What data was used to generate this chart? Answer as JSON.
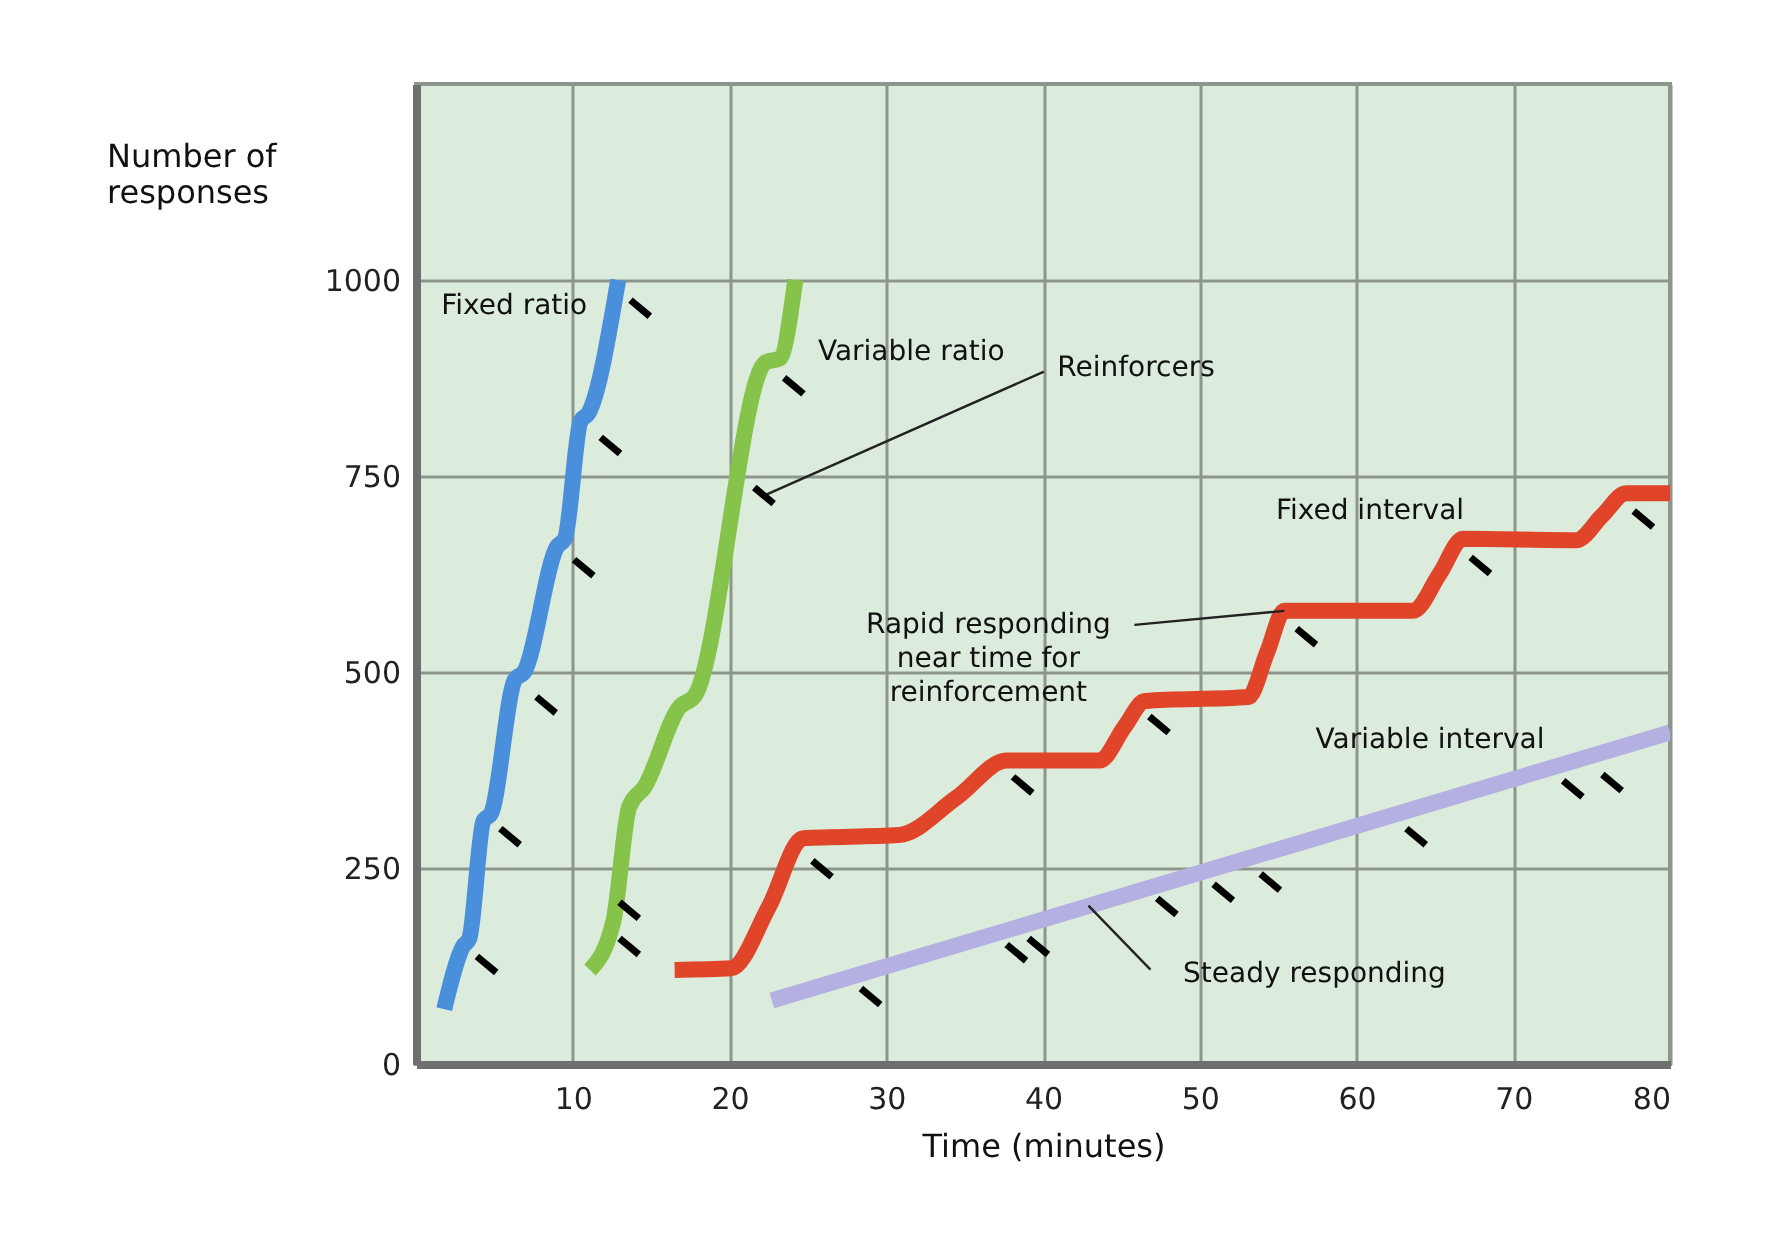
{
  "chart_data": {
    "type": "line",
    "xlabel": "Time (minutes)",
    "ylabel": "Number of\nresponses",
    "xlim": [
      0,
      80
    ],
    "ylim": [
      0,
      1250
    ],
    "xticks": [
      10,
      20,
      30,
      40,
      50,
      60,
      70,
      80
    ],
    "yticks": [
      0,
      250,
      500,
      750,
      1000
    ],
    "grid": true,
    "series": [
      {
        "name": "Fixed ratio",
        "color": "#4a8fdb",
        "x": [
          1.8,
          3.0,
          3.4,
          4.3,
          4.8,
          6.3,
          6.9,
          9.0,
          9.5,
          10.5,
          11.0,
          12.9
        ],
        "values": [
          70,
          150,
          160,
          310,
          320,
          490,
          500,
          660,
          670,
          820,
          830,
          1000
        ]
      },
      {
        "name": "Variable ratio",
        "color": "#86c34a",
        "x": [
          11.1,
          12.6,
          13.6,
          14.6,
          16.8,
          17.8,
          22.3,
          23.2,
          24.2
        ],
        "values": [
          120,
          183,
          328,
          354,
          455,
          470,
          895,
          900,
          1000
        ]
      },
      {
        "name": "Fixed interval",
        "color": "#e0452a",
        "x": [
          16.5,
          20.1,
          22.5,
          24.7,
          30.8,
          34.5,
          37.7,
          43.6,
          45.2,
          46.5,
          53.1,
          54.3,
          55.4,
          63.6,
          65.3,
          66.8,
          74.0,
          75.7,
          77.2,
          80
        ],
        "values": [
          120,
          122,
          200,
          288,
          292,
          340,
          387,
          387,
          430,
          463,
          468,
          525,
          578,
          578,
          625,
          670,
          668,
          700,
          728,
          728
        ]
      },
      {
        "name": "Variable interval",
        "color": "#b4b0e2",
        "x": [
          22.7,
          80
        ],
        "values": [
          81,
          423
        ]
      },
      {
        "type": "scatter",
        "color": "#000000",
        "x": [
          4.5,
          6.0,
          8.3,
          10.7,
          12.4,
          14.3,
          13.6,
          13.6,
          22.2,
          24.1,
          25.9,
          38.7,
          47.4,
          56.8,
          67.9,
          78.3,
          29.0,
          38.3,
          39.7,
          47.9,
          51.5,
          54.5,
          63.8,
          73.8,
          76.3
        ],
        "values": [
          127,
          290,
          458,
          633,
          789,
          964,
          150,
          196,
          725,
          865,
          249,
          356,
          433,
          545,
          636,
          695,
          86,
          142,
          150,
          201,
          219,
          232,
          290,
          351,
          359
        ]
      }
    ],
    "annotations": [
      {
        "text": "Reinforcers",
        "x": 22.2,
        "y": 725
      },
      {
        "text": "Rapid responding\nnear time for\nreinforcement",
        "x": 55.4,
        "y": 578
      },
      {
        "text": "Steady responding",
        "x": 42.9,
        "y": 202
      }
    ]
  }
}
